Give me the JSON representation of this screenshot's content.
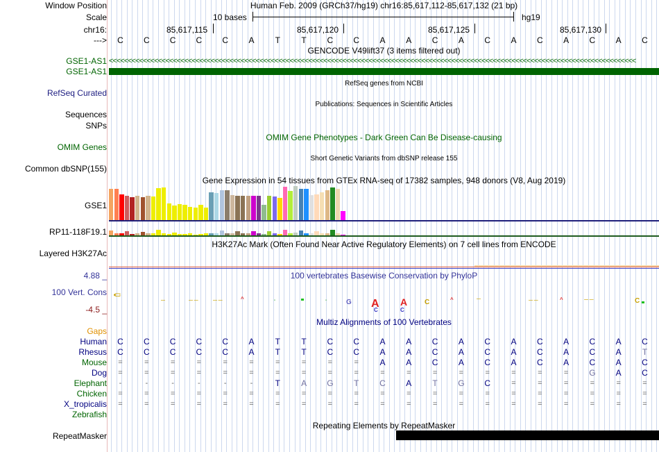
{
  "labels": {
    "window_position": "Window Position",
    "scale": "Scale",
    "chrom": "chr16:",
    "arrow": "--->",
    "gse1_as1_a": "GSE1-AS1",
    "gse1_as1_b": "GSE1-AS1",
    "refseq": "RefSeq Curated",
    "sequences": "Sequences",
    "snps": "SNPs",
    "omim": "OMIM Genes",
    "dbsnp": "Common dbSNP(155)",
    "gse1": "GSE1",
    "rp11": "RP11-118F19.1",
    "h3k27": "Layered H3K27Ac",
    "phylop_max": "4.88 _",
    "phylop_name": "100 Vert. Cons",
    "phylop_min": "-4.5 _",
    "gaps": "Gaps",
    "repeatmasker": "RepeatMasker"
  },
  "header": {
    "position_text": "Human Feb. 2009 (GRCh37/hg19)   chr16:85,617,112-85,617,132 (21 bp)",
    "scale_text": "10 bases",
    "scale_assembly": "hg19",
    "coords": [
      "85,617,115",
      "85,617,120",
      "85,617,125",
      "85,617,130"
    ]
  },
  "titles": {
    "gencode": "GENCODE V49lift37 (3 items filtered out)",
    "refseq": "RefSeq genes from NCBI",
    "publications": "Publications: Sequences in Scientific Articles",
    "omim": "OMIM Gene Phenotypes - Dark Green Can Be Disease-causing",
    "dbsnp": "Short Genetic Variants from dbSNP release 155",
    "gtex": "Gene Expression in 54 tissues from GTEx RNA-seq of 17382 samples, 948 donors (V8, Aug 2019)",
    "h3k27": "H3K27Ac Mark (Often Found Near Active Regulatory Elements) on 7 cell lines from ENCODE",
    "phylop": "100 vertebrates Basewise Conservation by PhyloP",
    "multiz": "Multiz Alignments of 100 Vertebrates",
    "repeat": "Repeating Elements by RepeatMasker"
  },
  "reference_bases": [
    "C",
    "C",
    "C",
    "C",
    "C",
    "A",
    "T",
    "T",
    "C",
    "C",
    "A",
    "A",
    "C",
    "A",
    "C",
    "A",
    "C",
    "A",
    "C",
    "A",
    "C"
  ],
  "alignments": [
    {
      "species": "Human",
      "color": "#000080",
      "bases": [
        "C",
        "C",
        "C",
        "C",
        "C",
        "A",
        "T",
        "T",
        "C",
        "C",
        "A",
        "A",
        "C",
        "A",
        "C",
        "A",
        "C",
        "A",
        "C",
        "A",
        "C"
      ]
    },
    {
      "species": "Rhesus",
      "color": "#000080",
      "bases": [
        "C",
        "C",
        "C",
        "C",
        "C",
        "A",
        "T",
        "T",
        "C",
        "C",
        "A",
        "A",
        "C",
        "A",
        "C",
        "A",
        "C",
        "A",
        "C",
        "A",
        "T"
      ]
    },
    {
      "species": "Mouse",
      "color": "#006400",
      "bases": [
        "=",
        "=",
        "=",
        "=",
        "=",
        "=",
        "=",
        "=",
        "=",
        "=",
        "A",
        "A",
        "C",
        "A",
        "C",
        "A",
        "C",
        "A",
        "C",
        "A",
        "C"
      ]
    },
    {
      "species": "Dog",
      "color": "#000080",
      "bases": [
        "=",
        "=",
        "=",
        "=",
        "=",
        "=",
        "=",
        "=",
        "=",
        "=",
        "=",
        "=",
        "=",
        "=",
        "=",
        "=",
        "=",
        "=",
        "G",
        "A",
        "C"
      ]
    },
    {
      "species": "Elephant",
      "color": "#006400",
      "bases": [
        "-",
        "-",
        "-",
        "-",
        "-",
        "-",
        "T",
        "A",
        "G",
        "T",
        "C",
        "A",
        "T",
        "G",
        "C",
        "=",
        "=",
        "=",
        "=",
        "=",
        "="
      ]
    },
    {
      "species": "Chicken",
      "color": "#006400",
      "bases": [
        "=",
        "=",
        "=",
        "=",
        "=",
        "=",
        "=",
        "=",
        "=",
        "=",
        "=",
        "=",
        "=",
        "=",
        "=",
        "=",
        "=",
        "=",
        "=",
        "=",
        "="
      ]
    },
    {
      "species": "X_tropicalis",
      "color": "#000080",
      "bases": [
        "=",
        "=",
        "=",
        "=",
        "=",
        "=",
        "=",
        "=",
        "=",
        "=",
        "=",
        "=",
        "=",
        "=",
        "=",
        "=",
        "=",
        "=",
        "=",
        "=",
        "="
      ]
    },
    {
      "species": "Zebrafish",
      "color": "#006400",
      "bases": []
    }
  ],
  "gtex_colors": {
    "gse1": [
      "#f4a460",
      "#ff7f50",
      "#ff0000",
      "#cd5c5c",
      "#b22222",
      "#d2b48c",
      "#a0522d",
      "#d2b48c",
      "#eeee00",
      "#eeee00",
      "#eeee00",
      "#eeee00",
      "#eeee00",
      "#eeee00",
      "#eeee00",
      "#eeee00",
      "#eeee00",
      "#eeee00",
      "#eeee00",
      "#6a9fb5",
      "#add8e6",
      "#b0c4de",
      "#8b7d6b",
      "#cdb79e",
      "#8b7355",
      "#8b7355",
      "#c0a080",
      "#cd00cd",
      "#7a378b",
      "#8fbc8f",
      "#9acd32",
      "#7b68ee",
      "#ffd700",
      "#ff69b4",
      "#b3ee3a",
      "#c1cdc1",
      "#4682b4",
      "#1e90ff",
      "#e0e0e0",
      "#ffdab9",
      "#f5deb3",
      "#deb887",
      "#228b22",
      "#eed8ae",
      "#ff00ff"
    ],
    "gse1_values": [
      0.92,
      0.92,
      0.75,
      0.72,
      0.68,
      0.72,
      0.67,
      0.72,
      0.7,
      0.94,
      0.95,
      0.5,
      0.44,
      0.48,
      0.45,
      0.4,
      0.38,
      0.45,
      0.38,
      0.82,
      0.8,
      0.88,
      0.88,
      0.74,
      0.72,
      0.72,
      0.72,
      0.72,
      0.72,
      0.45,
      0.72,
      0.7,
      0.65,
      0.98,
      0.85,
      1.0,
      0.92,
      0.92,
      0.74,
      0.76,
      0.82,
      0.88,
      0.96,
      0.92,
      0.28
    ]
  }
}
